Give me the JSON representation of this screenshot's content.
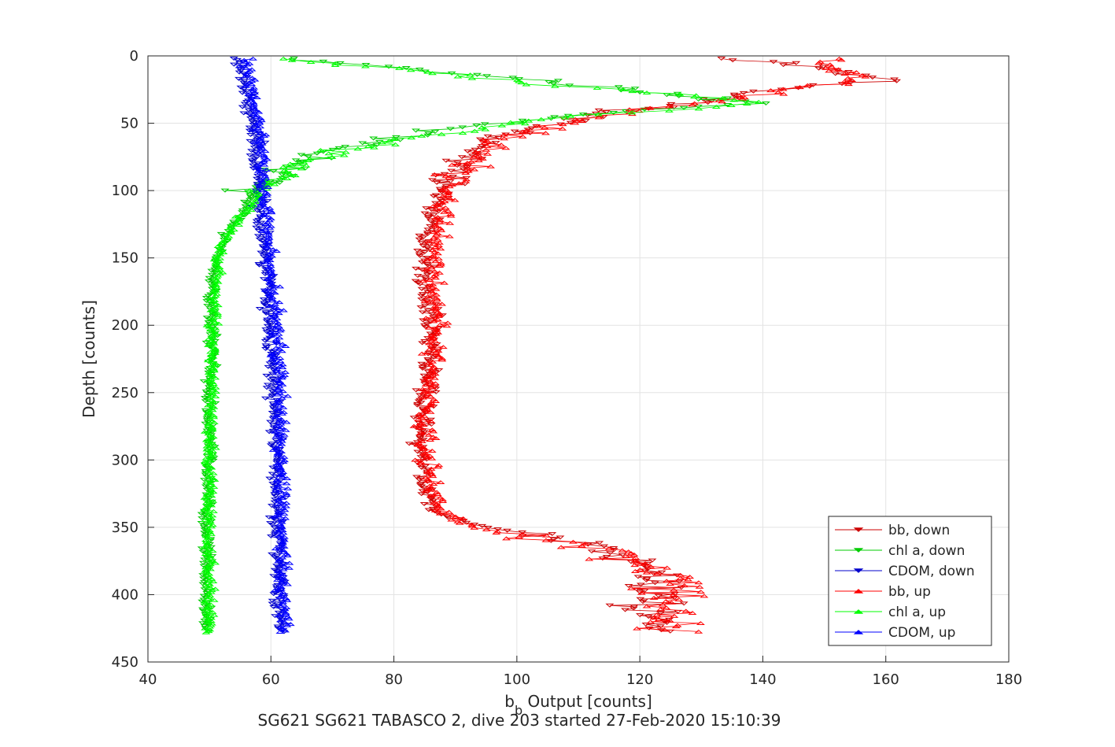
{
  "chart_data": {
    "type": "scatter",
    "title": "",
    "subtitle": "SG621 SG621 TABASCO 2, dive 203 started 27-Feb-2020 15:10:39",
    "xlabel_base": "b",
    "xlabel_sub": "b",
    "xlabel_rest": " Output [counts]",
    "ylabel": "Depth [counts]",
    "xlim": [
      40,
      180
    ],
    "ylim": [
      0,
      450
    ],
    "y_reversed": true,
    "grid": true,
    "legend_position": "bottom-right",
    "x_ticks": [
      "40",
      "60",
      "80",
      "100",
      "120",
      "140",
      "160",
      "180"
    ],
    "y_ticks": [
      "0",
      "50",
      "100",
      "150",
      "200",
      "250",
      "300",
      "350",
      "400",
      "450"
    ],
    "series": [
      {
        "name": "bb, down",
        "color": "#cc0000",
        "marker": "triangle-down",
        "direction": "down",
        "profile": [
          [
            2,
            131
          ],
          [
            5,
            143
          ],
          [
            10,
            150
          ],
          [
            15,
            155
          ],
          [
            18,
            160
          ],
          [
            22,
            148
          ],
          [
            28,
            135
          ],
          [
            35,
            128
          ],
          [
            40,
            118
          ],
          [
            48,
            108
          ],
          [
            55,
            100
          ],
          [
            62,
            96
          ],
          [
            70,
            93
          ],
          [
            80,
            92
          ],
          [
            90,
            89
          ],
          [
            100,
            88
          ],
          [
            110,
            87
          ],
          [
            125,
            86
          ],
          [
            140,
            85
          ],
          [
            160,
            85
          ],
          [
            180,
            85.5
          ],
          [
            200,
            86
          ],
          [
            230,
            86
          ],
          [
            260,
            85
          ],
          [
            280,
            84.5
          ],
          [
            300,
            84.5
          ],
          [
            320,
            85
          ],
          [
            340,
            87
          ],
          [
            345,
            90
          ],
          [
            350,
            95
          ],
          [
            355,
            102
          ],
          [
            360,
            110
          ],
          [
            370,
            116
          ],
          [
            385,
            122
          ],
          [
            400,
            123
          ],
          [
            415,
            123
          ],
          [
            428,
            124
          ]
        ]
      },
      {
        "name": "chl a, down",
        "color": "#00cc00",
        "marker": "triangle-down",
        "direction": "down",
        "profile": [
          [
            2,
            62
          ],
          [
            5,
            70
          ],
          [
            8,
            78
          ],
          [
            12,
            88
          ],
          [
            15,
            95
          ],
          [
            18,
            103
          ],
          [
            22,
            110
          ],
          [
            25,
            118
          ],
          [
            30,
            128
          ],
          [
            35,
            138
          ],
          [
            38,
            130
          ],
          [
            42,
            115
          ],
          [
            48,
            100
          ],
          [
            55,
            88
          ],
          [
            60,
            82
          ],
          [
            65,
            75
          ],
          [
            70,
            70
          ],
          [
            75,
            67
          ],
          [
            80,
            64
          ],
          [
            85,
            62
          ],
          [
            90,
            61
          ],
          [
            95,
            59
          ],
          [
            100,
            57
          ],
          [
            110,
            56
          ],
          [
            120,
            55
          ],
          [
            130,
            53
          ],
          [
            140,
            52
          ],
          [
            150,
            51
          ],
          [
            170,
            50.5
          ],
          [
            200,
            50.5
          ],
          [
            250,
            50
          ],
          [
            300,
            50
          ],
          [
            350,
            49.5
          ],
          [
            400,
            49.5
          ],
          [
            428,
            49.5
          ]
        ]
      },
      {
        "name": "CDOM, down",
        "color": "#0000cc",
        "marker": "triangle-down",
        "direction": "down",
        "profile": [
          [
            2,
            54
          ],
          [
            10,
            55
          ],
          [
            20,
            55.5
          ],
          [
            30,
            56
          ],
          [
            40,
            56.5
          ],
          [
            50,
            57
          ],
          [
            60,
            57.5
          ],
          [
            80,
            58
          ],
          [
            100,
            58
          ],
          [
            120,
            58.5
          ],
          [
            150,
            59
          ],
          [
            180,
            59.5
          ],
          [
            200,
            60
          ],
          [
            250,
            60.5
          ],
          [
            300,
            61
          ],
          [
            350,
            61
          ],
          [
            400,
            61.5
          ],
          [
            428,
            61.5
          ]
        ]
      },
      {
        "name": "bb, up",
        "color": "#ff0000",
        "marker": "triangle-up",
        "direction": "up",
        "profile": [
          [
            2,
            150
          ],
          [
            8,
            152
          ],
          [
            15,
            155
          ],
          [
            20,
            152
          ],
          [
            25,
            145
          ],
          [
            30,
            138
          ],
          [
            35,
            130
          ],
          [
            40,
            120
          ],
          [
            48,
            110
          ],
          [
            55,
            103
          ],
          [
            62,
            98
          ],
          [
            70,
            95
          ],
          [
            80,
            93
          ],
          [
            90,
            90
          ],
          [
            100,
            89
          ],
          [
            120,
            88
          ],
          [
            140,
            87
          ],
          [
            160,
            86.5
          ],
          [
            180,
            87
          ],
          [
            200,
            87
          ],
          [
            230,
            86.5
          ],
          [
            260,
            85.5
          ],
          [
            290,
            85
          ],
          [
            320,
            86
          ],
          [
            340,
            88
          ],
          [
            350,
            93
          ],
          [
            360,
            105
          ],
          [
            370,
            118
          ],
          [
            390,
            125
          ],
          [
            410,
            125
          ],
          [
            428,
            126
          ]
        ]
      },
      {
        "name": "chl a, up",
        "color": "#00ff00",
        "marker": "triangle-up",
        "direction": "up",
        "profile": [
          [
            2,
            62
          ],
          [
            5,
            68
          ],
          [
            10,
            80
          ],
          [
            15,
            92
          ],
          [
            20,
            102
          ],
          [
            25,
            115
          ],
          [
            30,
            130
          ],
          [
            35,
            140
          ],
          [
            40,
            125
          ],
          [
            45,
            110
          ],
          [
            50,
            100
          ],
          [
            55,
            92
          ],
          [
            60,
            85
          ],
          [
            65,
            80
          ],
          [
            70,
            72
          ],
          [
            75,
            68
          ],
          [
            80,
            65
          ],
          [
            85,
            63
          ],
          [
            90,
            62
          ],
          [
            100,
            59
          ],
          [
            110,
            57
          ],
          [
            120,
            55
          ],
          [
            130,
            53.5
          ],
          [
            140,
            52
          ],
          [
            150,
            51.5
          ],
          [
            200,
            50.5
          ],
          [
            250,
            50.5
          ],
          [
            300,
            50
          ],
          [
            350,
            50
          ],
          [
            400,
            50
          ],
          [
            428,
            50
          ]
        ]
      },
      {
        "name": "CDOM, up",
        "color": "#0000ff",
        "marker": "triangle-up",
        "direction": "up",
        "profile": [
          [
            2,
            56
          ],
          [
            10,
            56.5
          ],
          [
            20,
            57
          ],
          [
            30,
            57
          ],
          [
            40,
            57.5
          ],
          [
            50,
            58
          ],
          [
            70,
            58.5
          ],
          [
            100,
            59
          ],
          [
            130,
            59.5
          ],
          [
            150,
            60
          ],
          [
            180,
            60.5
          ],
          [
            200,
            61
          ],
          [
            250,
            61.5
          ],
          [
            300,
            61.5
          ],
          [
            350,
            62
          ],
          [
            400,
            62
          ],
          [
            428,
            62
          ]
        ]
      }
    ]
  }
}
